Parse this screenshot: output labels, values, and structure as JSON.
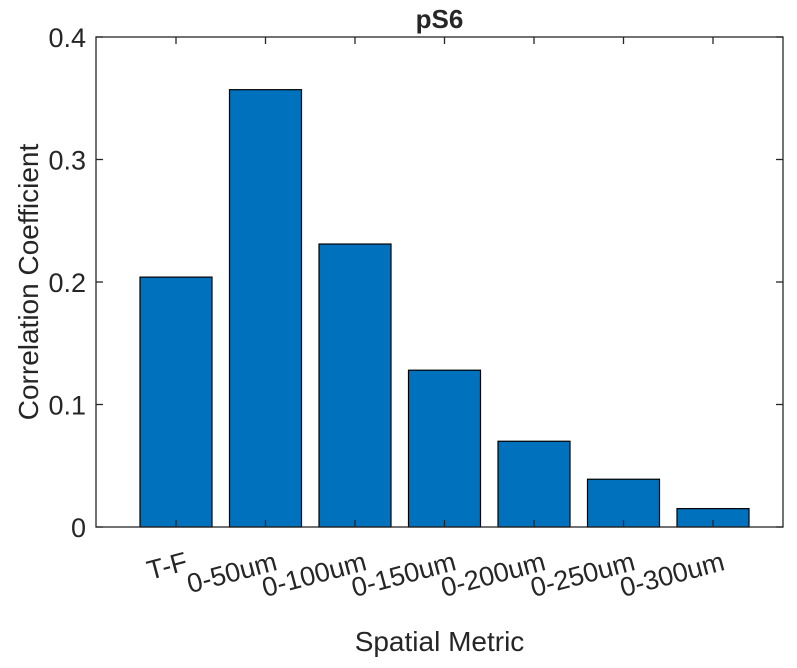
{
  "chart_data": {
    "type": "bar",
    "title": "pS6",
    "xlabel": "Spatial Metric",
    "ylabel": "Correlation Coefficient",
    "categories": [
      "T-F",
      "0-50um",
      "0-100um",
      "0-150um",
      "0-200um",
      "0-250um",
      "0-300um"
    ],
    "values": [
      0.204,
      0.357,
      0.231,
      0.128,
      0.07,
      0.039,
      0.015
    ],
    "ylim": [
      0,
      0.4
    ],
    "yticks": [
      0,
      0.1,
      0.2,
      0.3,
      0.4
    ],
    "ytick_labels": [
      "0",
      "0.1",
      "0.2",
      "0.3",
      "0.4"
    ],
    "grid": false,
    "bar_color": "#0072BD"
  }
}
